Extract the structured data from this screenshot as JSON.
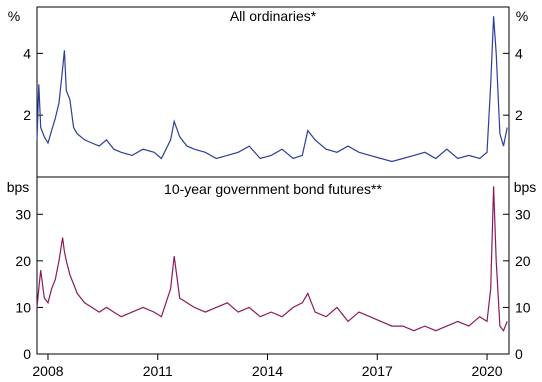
{
  "chart_data": [
    {
      "type": "line",
      "panel": "top",
      "title": "All ordinaries*",
      "unit_left": "%",
      "unit_right": "%",
      "ylim": [
        0,
        5.5
      ],
      "yticks": [
        2,
        4
      ],
      "ytick_labels": [
        "2",
        "4"
      ],
      "xlim": [
        2007.7,
        2020.6
      ],
      "grid": false,
      "series": [
        {
          "color": "#2b3f9c",
          "x": [
            2007.7,
            2007.75,
            2007.8,
            2007.9,
            2008.0,
            2008.1,
            2008.2,
            2008.3,
            2008.4,
            2008.45,
            2008.5,
            2008.6,
            2008.7,
            2008.8,
            2008.9,
            2009.0,
            2009.2,
            2009.4,
            2009.6,
            2009.8,
            2010.0,
            2010.3,
            2010.6,
            2010.9,
            2011.1,
            2011.35,
            2011.45,
            2011.6,
            2011.8,
            2012.0,
            2012.3,
            2012.6,
            2012.9,
            2013.2,
            2013.5,
            2013.8,
            2014.1,
            2014.4,
            2014.7,
            2014.95,
            2015.1,
            2015.3,
            2015.6,
            2015.9,
            2016.2,
            2016.5,
            2016.8,
            2017.1,
            2017.4,
            2017.7,
            2018.0,
            2018.3,
            2018.6,
            2018.9,
            2019.2,
            2019.5,
            2019.8,
            2020.0,
            2020.1,
            2020.18,
            2020.25,
            2020.35,
            2020.45,
            2020.55
          ],
          "y": [
            1.2,
            3.0,
            1.6,
            1.3,
            1.1,
            1.5,
            1.9,
            2.4,
            3.5,
            4.1,
            2.8,
            2.5,
            1.6,
            1.4,
            1.3,
            1.2,
            1.1,
            1.0,
            1.2,
            0.9,
            0.8,
            0.7,
            0.9,
            0.8,
            0.6,
            1.2,
            1.8,
            1.3,
            1.0,
            0.9,
            0.8,
            0.6,
            0.7,
            0.8,
            1.0,
            0.6,
            0.7,
            0.9,
            0.6,
            0.7,
            1.5,
            1.2,
            0.9,
            0.8,
            1.0,
            0.8,
            0.7,
            0.6,
            0.5,
            0.6,
            0.7,
            0.8,
            0.6,
            0.9,
            0.6,
            0.7,
            0.6,
            0.8,
            3.0,
            5.2,
            4.0,
            1.4,
            1.0,
            1.6
          ]
        }
      ]
    },
    {
      "type": "line",
      "panel": "bottom",
      "title": "10-year government bond futures**",
      "unit_left": "bps",
      "unit_right": "bps",
      "ylim": [
        0,
        38
      ],
      "yticks": [
        0,
        10,
        20,
        30
      ],
      "ytick_labels": [
        "0",
        "10",
        "20",
        "30"
      ],
      "xlim": [
        2007.7,
        2020.6
      ],
      "xticks": [
        2008,
        2011,
        2014,
        2017,
        2020
      ],
      "xtick_labels": [
        "2008",
        "2011",
        "2014",
        "2017",
        "2020"
      ],
      "grid": false,
      "series": [
        {
          "color": "#8b1a5a",
          "x": [
            2007.7,
            2007.75,
            2007.8,
            2007.9,
            2008.0,
            2008.1,
            2008.2,
            2008.3,
            2008.4,
            2008.45,
            2008.5,
            2008.6,
            2008.7,
            2008.8,
            2008.9,
            2009.0,
            2009.2,
            2009.4,
            2009.6,
            2009.8,
            2010.0,
            2010.3,
            2010.6,
            2010.9,
            2011.1,
            2011.35,
            2011.45,
            2011.6,
            2011.8,
            2012.0,
            2012.3,
            2012.6,
            2012.9,
            2013.2,
            2013.5,
            2013.8,
            2014.1,
            2014.4,
            2014.7,
            2014.95,
            2015.1,
            2015.3,
            2015.6,
            2015.9,
            2016.2,
            2016.5,
            2016.8,
            2017.1,
            2017.4,
            2017.7,
            2018.0,
            2018.3,
            2018.6,
            2018.9,
            2019.2,
            2019.5,
            2019.8,
            2020.0,
            2020.1,
            2020.18,
            2020.25,
            2020.35,
            2020.45,
            2020.55
          ],
          "y": [
            10,
            14,
            18,
            12,
            11,
            14,
            16,
            20,
            25,
            22,
            20,
            17,
            15,
            13,
            12,
            11,
            10,
            9,
            10,
            9,
            8,
            9,
            10,
            9,
            8,
            14,
            21,
            12,
            11,
            10,
            9,
            10,
            11,
            9,
            10,
            8,
            9,
            8,
            10,
            11,
            13,
            9,
            8,
            10,
            7,
            9,
            8,
            7,
            6,
            6,
            5,
            6,
            5,
            6,
            7,
            6,
            8,
            7,
            14,
            36,
            20,
            6,
            5,
            7
          ]
        }
      ]
    }
  ]
}
